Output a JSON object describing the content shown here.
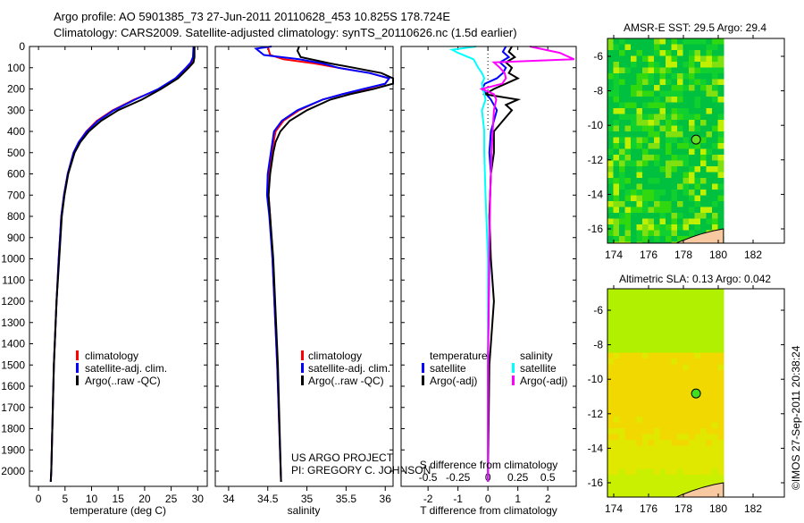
{
  "header": {
    "line1": "Argo profile: AO 5901385_73 27-Jun-2011 20110628_453 10.825S 178.724E",
    "line2": "Climatology: CARS2009. Satellite-adjusted climatology: synTS_20110626.nc (1.5d earlier)"
  },
  "colors": {
    "climatology": "#ff0000",
    "satellite": "#0000ff",
    "argo": "#000000",
    "s_satellite": "#00ffff",
    "s_argo": "#ff00ff"
  },
  "chart_data": [
    {
      "type": "line",
      "id": "temperature",
      "xlabel": "temperature (deg C)",
      "xlim": [
        -1.7,
        31.8
      ],
      "ylim": [
        2075,
        0
      ],
      "xticks": [
        "0",
        "5",
        "10",
        "15",
        "20",
        "25",
        "30"
      ],
      "xtick_values": [
        0,
        5,
        10,
        15,
        20,
        25,
        30
      ],
      "yticks": [
        "0",
        "100",
        "200",
        "300",
        "400",
        "500",
        "600",
        "700",
        "800",
        "900",
        "1000",
        "1100",
        "1200",
        "1300",
        "1400",
        "1500",
        "1600",
        "1700",
        "1800",
        "1900",
        "2000"
      ],
      "legend": [
        "climatology",
        "satellite-adj. clim.",
        "Argo(..raw -QC)"
      ],
      "series": [
        {
          "name": "climatology",
          "color": "#ff0000",
          "p": [
            0,
            50,
            75,
            100,
            150,
            200,
            250,
            300,
            350,
            400,
            450,
            500,
            600,
            700,
            800,
            1000,
            1200,
            1500,
            2000,
            2050
          ],
          "v": [
            29.4,
            29.3,
            28.9,
            28,
            26,
            22.8,
            18,
            14,
            11,
            9,
            7.6,
            6.6,
            5.5,
            4.8,
            4.3,
            3.8,
            3.4,
            2.9,
            2.4,
            2.3
          ]
        },
        {
          "name": "satellite-adj. clim.",
          "color": "#0000ff",
          "p": [
            0,
            50,
            75,
            100,
            150,
            200,
            250,
            300,
            350,
            400,
            450,
            500,
            600,
            700,
            800,
            1000,
            1200,
            1500,
            2000,
            2050
          ],
          "v": [
            29.2,
            29.1,
            28.7,
            27.8,
            25.8,
            22.6,
            18.2,
            14.2,
            11.2,
            9.1,
            7.6,
            6.6,
            5.5,
            4.8,
            4.3,
            3.8,
            3.4,
            2.9,
            2.4,
            2.3
          ]
        },
        {
          "name": "Argo(..raw -QC)",
          "color": "#000000",
          "p": [
            0,
            50,
            75,
            100,
            150,
            200,
            250,
            300,
            350,
            400,
            450,
            500,
            600,
            700,
            800,
            1000,
            1200,
            1500,
            2000,
            2050
          ],
          "v": [
            29.4,
            29.4,
            29.2,
            28.3,
            26.3,
            23.1,
            19.5,
            15,
            11.8,
            9.5,
            7.9,
            6.8,
            5.6,
            4.9,
            4.4,
            3.9,
            3.4,
            2.9,
            2.4,
            2.3
          ]
        }
      ]
    },
    {
      "type": "line",
      "id": "salinity",
      "xlabel": "salinity",
      "xlim": [
        33.83,
        36.1
      ],
      "ylim": [
        2075,
        0
      ],
      "xticks": [
        "34",
        "34.5",
        "35",
        "35.5",
        "36"
      ],
      "xtick_values": [
        34,
        34.5,
        35,
        35.5,
        36
      ],
      "legend": [
        "climatology",
        "satellite-adj. clim.",
        "Argo(..raw -QC)"
      ],
      "series": [
        {
          "name": "climatology",
          "color": "#ff0000",
          "p": [
            0,
            40,
            60,
            80,
            100,
            125,
            150,
            175,
            200,
            225,
            250,
            300,
            350,
            400,
            500,
            600,
            700,
            800,
            1000,
            1500,
            2050
          ],
          "v": [
            34.5,
            34.53,
            34.7,
            35.1,
            35.4,
            35.8,
            36.05,
            36.0,
            35.75,
            35.45,
            35.2,
            34.9,
            34.7,
            34.6,
            34.55,
            34.52,
            34.51,
            34.53,
            34.56,
            34.62,
            34.67
          ]
        },
        {
          "name": "satellite-adj. clim.",
          "color": "#0000ff",
          "p": [
            0,
            10,
            40,
            60,
            80,
            100,
            125,
            150,
            175,
            200,
            225,
            250,
            300,
            350,
            400,
            500,
            600,
            700,
            800,
            1000,
            1500,
            2050
          ],
          "v": [
            34.55,
            34.35,
            34.45,
            34.9,
            35.2,
            35.4,
            35.8,
            36.05,
            36.0,
            35.72,
            35.45,
            35.2,
            34.88,
            34.68,
            34.58,
            34.54,
            34.5,
            34.49,
            34.52,
            34.56,
            34.62,
            34.67
          ]
        },
        {
          "name": "Argo(..raw -QC)",
          "color": "#000000",
          "p": [
            0,
            20,
            50,
            80,
            100,
            125,
            150,
            175,
            200,
            225,
            250,
            300,
            350,
            400,
            450,
            500,
            600,
            700,
            800,
            1000,
            1500,
            2050
          ],
          "v": [
            34.9,
            34.88,
            34.92,
            35.3,
            35.6,
            35.95,
            36.1,
            36.1,
            35.85,
            35.55,
            35.3,
            35.0,
            34.78,
            34.66,
            34.6,
            34.57,
            34.53,
            34.51,
            34.53,
            34.57,
            34.63,
            34.67
          ]
        }
      ]
    },
    {
      "type": "line",
      "id": "difference",
      "xlabel": "T difference from climatology",
      "x2label": "S difference from climatology",
      "xlim": [
        -2.9,
        2.95
      ],
      "s_scale": 0.25,
      "ylim": [
        2075,
        0
      ],
      "xticks": [
        "-2",
        "-1",
        "0",
        "1",
        "2"
      ],
      "xtick_values": [
        -2,
        -1,
        0,
        1,
        2
      ],
      "x2ticks": [
        "-0.5",
        "-0.25",
        "0",
        "0.25",
        "0.5"
      ],
      "x2tick_values": [
        -0.5,
        -0.25,
        0,
        0.25,
        0.5
      ],
      "legend_t_title": "temperature",
      "legend_s_title": "salinity",
      "legend_t": [
        "satellite",
        "Argo(-adj)"
      ],
      "legend_s": [
        "satellite",
        "Argo(-adj)"
      ],
      "series": [
        {
          "name": "T satellite",
          "kind": "T",
          "color": "#0000ff",
          "p": [
            0,
            25,
            50,
            75,
            100,
            125,
            150,
            175,
            200,
            250,
            300,
            350,
            400,
            500,
            600,
            800,
            1000,
            1500,
            2050
          ],
          "v": [
            0.6,
            0.5,
            0.7,
            0.4,
            0.6,
            0.5,
            0.3,
            -0.1,
            -0.2,
            0.1,
            0.3,
            0.2,
            0.1,
            0.05,
            0.1,
            0.05,
            0.05,
            0.0,
            0.0
          ]
        },
        {
          "name": "T Argo",
          "kind": "T",
          "color": "#000000",
          "p": [
            0,
            25,
            50,
            75,
            100,
            125,
            150,
            175,
            200,
            225,
            250,
            275,
            300,
            350,
            400,
            500,
            600,
            800,
            1000,
            1200,
            1500,
            2050
          ],
          "v": [
            0.8,
            0.7,
            0.9,
            0.6,
            0.8,
            0.7,
            1.0,
            0.6,
            0.2,
            -0.1,
            1.0,
            0.6,
            0.8,
            0.5,
            0.2,
            0.2,
            0.1,
            0.05,
            0.1,
            0.2,
            0.05,
            0.0
          ]
        },
        {
          "name": "S satellite",
          "kind": "S",
          "color": "#00ffff",
          "p": [
            0,
            15,
            30,
            60,
            100,
            125,
            150,
            175,
            200,
            250,
            300,
            400,
            500,
            700,
            1000,
            1500,
            2050
          ],
          "v": [
            -0.1,
            -0.3,
            -0.25,
            -0.12,
            -0.08,
            -0.05,
            -0.03,
            -0.05,
            -0.04,
            -0.02,
            -0.05,
            -0.03,
            -0.03,
            -0.02,
            0.0,
            0.0,
            0.0
          ]
        },
        {
          "name": "S Argo",
          "kind": "S",
          "color": "#ff00ff",
          "p": [
            0,
            30,
            60,
            75,
            100,
            125,
            150,
            175,
            200,
            225,
            250,
            300,
            400,
            500,
            700,
            1000,
            1500,
            2050
          ],
          "v": [
            0.35,
            0.6,
            0.72,
            0.05,
            0.1,
            0.14,
            0.15,
            0.12,
            -0.05,
            0.05,
            0.07,
            0.05,
            0.04,
            0.03,
            0.02,
            0.01,
            0.0,
            0.0
          ]
        }
      ]
    }
  ],
  "credit": {
    "line1": "US ARGO PROJECT",
    "line2": "PI: GREGORY C. JOHNSON"
  },
  "maps": [
    {
      "title": "AMSR-E SST: 29.5 Argo: 29.4",
      "palette": [
        "#00c040",
        "#10d030",
        "#30d810",
        "#80e010",
        "#c0f000",
        "#00b070",
        "#20c8a0"
      ]
    },
    {
      "title": "Altimetric SLA: 0.13 Argo: 0.042",
      "palette": [
        "#b0f000",
        "#c8f000",
        "#e0e800",
        "#f0d800",
        "#f0c800",
        "#f8b800"
      ]
    }
  ],
  "map_axes": {
    "lat_ticks": [
      "-6",
      "-8",
      "-10",
      "-12",
      "-14",
      "-16"
    ],
    "lon_ticks": [
      "174",
      "176",
      "178",
      "180",
      "182"
    ]
  },
  "timestamp": "©IMOS 27-Sep-2011 20:38:24"
}
